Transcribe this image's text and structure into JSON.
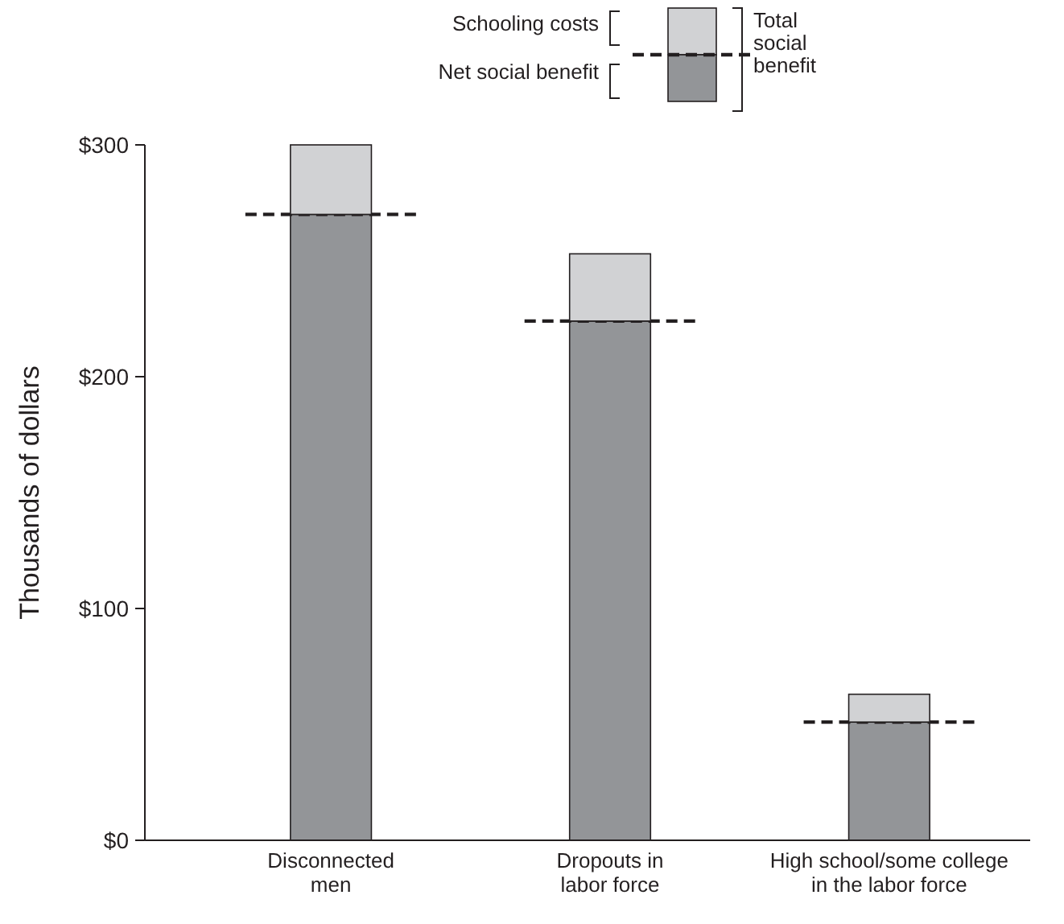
{
  "chart_data": {
    "type": "bar",
    "stacked": true,
    "ylabel": "Thousands of dollars",
    "legend_title": "Total social benefit",
    "legend": "top",
    "categories": [
      "Disconnected men",
      "Dropouts in labor force",
      "High school/some college in the labor force"
    ],
    "series": [
      {
        "name": "Net social benefit",
        "color": "#939598",
        "line_style": "dashed",
        "values": [
          270,
          224,
          51
        ]
      },
      {
        "name": "Schooling costs",
        "color": "#d1d2d4",
        "values": [
          30,
          29,
          12
        ]
      }
    ],
    "ylim": [
      0,
      300
    ],
    "yticks": [
      {
        "value": 0,
        "label": "$0"
      },
      {
        "value": 100,
        "label": "$100"
      },
      {
        "value": 200,
        "label": "$200"
      },
      {
        "value": 300,
        "label": "$300"
      }
    ],
    "grid": false
  }
}
